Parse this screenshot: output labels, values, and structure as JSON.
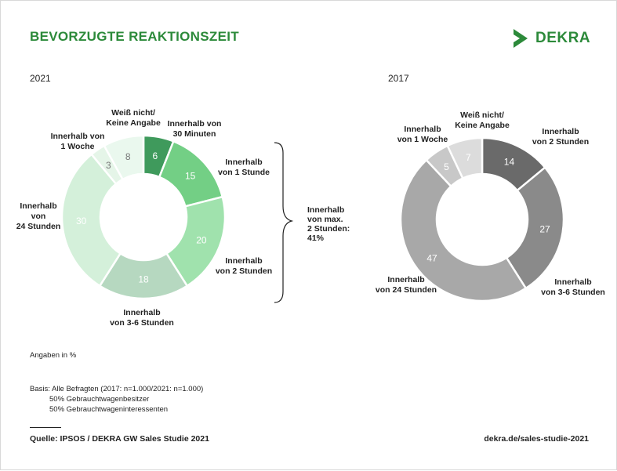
{
  "title": "BEVORZUGTE REAKTIONSZEIT",
  "logo": {
    "text": "DEKRA",
    "color": "#2c8a3a"
  },
  "chart_data": [
    {
      "type": "donut",
      "title": "2021",
      "slices": [
        {
          "label": [
            "Innerhalb von",
            "30 Minuten"
          ],
          "value": 6,
          "color": "#3f9a5c"
        },
        {
          "label": [
            "Innerhalb",
            "von 1 Stunde"
          ],
          "value": 15,
          "color": "#73cf85"
        },
        {
          "label": [
            "Innerhalb",
            "von 2 Stunden"
          ],
          "value": 20,
          "color": "#a0e2ad"
        },
        {
          "label": [
            "Innerhalb",
            "von 3-6 Stunden"
          ],
          "value": 18,
          "color": "#b6d8c0"
        },
        {
          "label": [
            "Innerhalb",
            "von",
            "24 Stunden"
          ],
          "value": 30,
          "color": "#d4f0da"
        },
        {
          "label": [
            "Innerhalb von",
            "1 Woche"
          ],
          "value": 3,
          "color": "#e5f5e8"
        },
        {
          "label": [
            "Weiß nicht/",
            "Keine Angabe"
          ],
          "value": 8,
          "color": "#eaf8ee"
        }
      ],
      "bracket_label": [
        "Innerhalb",
        "von max.",
        "2 Stunden:",
        "41%"
      ]
    },
    {
      "type": "donut",
      "title": "2017",
      "slices": [
        {
          "label": [
            "Innerhalb",
            "von 2 Stunden"
          ],
          "value": 14,
          "color": "#6a6a6a"
        },
        {
          "label": [
            "Innerhalb",
            "von 3-6 Stunden"
          ],
          "value": 27,
          "color": "#8a8a8a"
        },
        {
          "label": [
            "Innerhalb",
            "von 24 Stunden"
          ],
          "value": 47,
          "color": "#a8a8a8"
        },
        {
          "label": [
            "Innerhalb",
            "von 1 Woche"
          ],
          "value": 5,
          "color": "#c8c8c8"
        },
        {
          "label": [
            "Weiß nicht/",
            "Keine Angabe"
          ],
          "value": 7,
          "color": "#dcdcdc"
        }
      ]
    }
  ],
  "note": "Angaben in %",
  "basis": {
    "line1": "Basis: Alle Befragten (2017: n=1.000/2021: n=1.000)",
    "line2": "50% Gebrauchtwagenbesitzer",
    "line3": "50% Gebrauchtwageninteressenten"
  },
  "source": "Quelle: IPSOS / DEKRA GW Sales Studie 2021",
  "url": "dekra.de/sales-studie-2021"
}
